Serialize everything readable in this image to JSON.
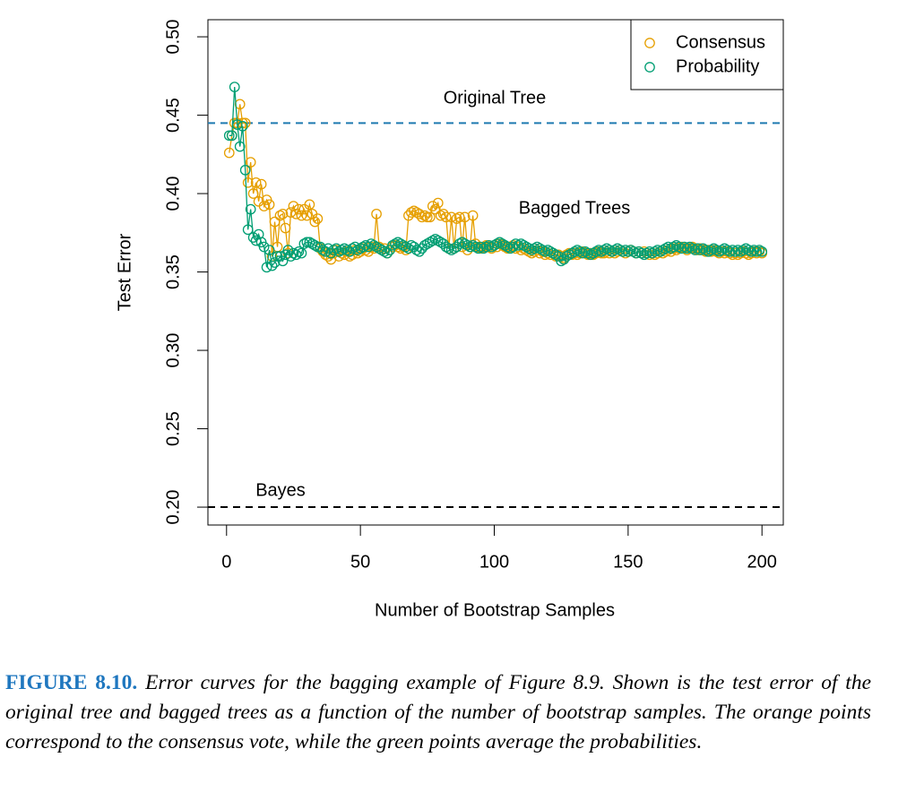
{
  "chart_data": {
    "type": "line",
    "xlabel": "Number of Bootstrap Samples",
    "ylabel": "Test Error",
    "xlim": [
      -6.96,
      207.96
    ],
    "ylim": [
      0.1886,
      0.5109
    ],
    "xticks": [
      0,
      50,
      100,
      150,
      200
    ],
    "yticks": [
      {
        "value": 0.2,
        "label": "0.20"
      },
      0.25,
      {
        "value": 0.3,
        "label": "0.30"
      },
      0.35,
      {
        "value": 0.4,
        "label": "0.40"
      },
      0.45,
      {
        "value": 0.5,
        "label": "0.50"
      }
    ],
    "legend": "top-right",
    "markers": "open-circle",
    "reference_lines": [
      {
        "label": "Original Tree",
        "value": 0.445,
        "color": "#1f7ab0"
      },
      {
        "label": "Bayes",
        "value": 0.2,
        "color": "#000000"
      }
    ],
    "annotations": [
      "Bagged Trees"
    ],
    "x": [
      1,
      2,
      3,
      4,
      5,
      6,
      7,
      8,
      9,
      10,
      11,
      12,
      13,
      14,
      15,
      16,
      17,
      18,
      19,
      20,
      21,
      22,
      23,
      24,
      25,
      26,
      27,
      28,
      29,
      30,
      31,
      32,
      33,
      34,
      35,
      36,
      37,
      38,
      39,
      40,
      41,
      42,
      43,
      44,
      45,
      46,
      47,
      48,
      49,
      50,
      51,
      52,
      53,
      54,
      55,
      56,
      57,
      58,
      59,
      60,
      61,
      62,
      63,
      64,
      65,
      66,
      67,
      68,
      69,
      70,
      71,
      72,
      73,
      74,
      75,
      76,
      77,
      78,
      79,
      80,
      81,
      82,
      83,
      84,
      85,
      86,
      87,
      88,
      89,
      90,
      91,
      92,
      93,
      94,
      95,
      96,
      97,
      98,
      99,
      100,
      101,
      102,
      103,
      104,
      105,
      106,
      107,
      108,
      109,
      110,
      111,
      112,
      113,
      114,
      115,
      116,
      117,
      118,
      119,
      120,
      121,
      122,
      123,
      124,
      125,
      126,
      127,
      128,
      129,
      130,
      131,
      132,
      133,
      134,
      135,
      136,
      137,
      138,
      139,
      140,
      141,
      142,
      143,
      144,
      145,
      146,
      147,
      148,
      149,
      150,
      151,
      152,
      153,
      154,
      155,
      156,
      157,
      158,
      159,
      160,
      161,
      162,
      163,
      164,
      165,
      166,
      167,
      168,
      169,
      170,
      171,
      172,
      173,
      174,
      175,
      176,
      177,
      178,
      179,
      180,
      181,
      182,
      183,
      184,
      185,
      186,
      187,
      188,
      189,
      190,
      191,
      192,
      193,
      194,
      195,
      196,
      197,
      198,
      199,
      200
    ],
    "series": [
      {
        "name": "Consensus",
        "color": "#E69F00",
        "values": [
          0.426,
          0.437,
          0.445,
          0.445,
          0.457,
          0.445,
          0.445,
          0.407,
          0.42,
          0.4,
          0.407,
          0.395,
          0.406,
          0.392,
          0.396,
          0.393,
          0.36,
          0.382,
          0.366,
          0.386,
          0.387,
          0.378,
          0.362,
          0.388,
          0.392,
          0.387,
          0.39,
          0.386,
          0.39,
          0.386,
          0.393,
          0.387,
          0.382,
          0.384,
          0.365,
          0.363,
          0.361,
          0.36,
          0.358,
          0.362,
          0.364,
          0.36,
          0.362,
          0.361,
          0.363,
          0.36,
          0.361,
          0.364,
          0.362,
          0.363,
          0.365,
          0.364,
          0.363,
          0.366,
          0.365,
          0.387,
          0.366,
          0.364,
          0.365,
          0.362,
          0.364,
          0.366,
          0.367,
          0.366,
          0.365,
          0.366,
          0.364,
          0.386,
          0.388,
          0.389,
          0.388,
          0.387,
          0.385,
          0.386,
          0.385,
          0.385,
          0.392,
          0.39,
          0.394,
          0.386,
          0.387,
          0.385,
          0.365,
          0.385,
          0.365,
          0.384,
          0.385,
          0.366,
          0.385,
          0.364,
          0.366,
          0.386,
          0.368,
          0.366,
          0.365,
          0.366,
          0.367,
          0.366,
          0.365,
          0.367,
          0.366,
          0.368,
          0.367,
          0.366,
          0.365,
          0.366,
          0.367,
          0.365,
          0.366,
          0.364,
          0.365,
          0.364,
          0.363,
          0.362,
          0.363,
          0.364,
          0.362,
          0.363,
          0.361,
          0.362,
          0.361,
          0.362,
          0.36,
          0.361,
          0.36,
          0.359,
          0.361,
          0.362,
          0.361,
          0.362,
          0.361,
          0.362,
          0.363,
          0.362,
          0.361,
          0.362,
          0.361,
          0.362,
          0.363,
          0.362,
          0.362,
          0.363,
          0.362,
          0.363,
          0.362,
          0.363,
          0.364,
          0.363,
          0.362,
          0.363,
          0.364,
          0.363,
          0.362,
          0.363,
          0.362,
          0.363,
          0.362,
          0.361,
          0.362,
          0.361,
          0.362,
          0.363,
          0.362,
          0.363,
          0.364,
          0.363,
          0.365,
          0.364,
          0.365,
          0.366,
          0.365,
          0.364,
          0.365,
          0.366,
          0.365,
          0.364,
          0.365,
          0.364,
          0.363,
          0.364,
          0.363,
          0.364,
          0.363,
          0.362,
          0.363,
          0.362,
          0.363,
          0.362,
          0.361,
          0.362,
          0.361,
          0.362,
          0.363,
          0.362,
          0.361,
          0.362,
          0.363,
          0.362,
          0.363,
          0.362
        ]
      },
      {
        "name": "Probability",
        "color": "#009E73",
        "values": [
          0.437,
          0.437,
          0.468,
          0.444,
          0.43,
          0.443,
          0.415,
          0.377,
          0.39,
          0.372,
          0.37,
          0.374,
          0.369,
          0.366,
          0.353,
          0.364,
          0.354,
          0.356,
          0.36,
          0.36,
          0.357,
          0.361,
          0.364,
          0.36,
          0.362,
          0.361,
          0.363,
          0.362,
          0.368,
          0.369,
          0.369,
          0.368,
          0.367,
          0.366,
          0.366,
          0.364,
          0.363,
          0.365,
          0.362,
          0.364,
          0.365,
          0.363,
          0.364,
          0.365,
          0.364,
          0.363,
          0.365,
          0.366,
          0.364,
          0.365,
          0.366,
          0.367,
          0.366,
          0.368,
          0.367,
          0.366,
          0.365,
          0.364,
          0.363,
          0.362,
          0.364,
          0.367,
          0.368,
          0.369,
          0.368,
          0.367,
          0.366,
          0.365,
          0.367,
          0.366,
          0.364,
          0.363,
          0.365,
          0.367,
          0.368,
          0.369,
          0.37,
          0.371,
          0.37,
          0.369,
          0.368,
          0.366,
          0.365,
          0.364,
          0.365,
          0.366,
          0.368,
          0.369,
          0.368,
          0.367,
          0.366,
          0.367,
          0.366,
          0.365,
          0.366,
          0.365,
          0.366,
          0.367,
          0.366,
          0.367,
          0.368,
          0.369,
          0.368,
          0.367,
          0.366,
          0.365,
          0.366,
          0.368,
          0.367,
          0.368,
          0.367,
          0.366,
          0.365,
          0.364,
          0.365,
          0.366,
          0.365,
          0.364,
          0.363,
          0.364,
          0.363,
          0.362,
          0.361,
          0.36,
          0.357,
          0.358,
          0.36,
          0.361,
          0.362,
          0.363,
          0.364,
          0.363,
          0.362,
          0.363,
          0.362,
          0.361,
          0.362,
          0.363,
          0.364,
          0.363,
          0.364,
          0.365,
          0.364,
          0.363,
          0.364,
          0.365,
          0.364,
          0.363,
          0.364,
          0.363,
          0.364,
          0.363,
          0.362,
          0.363,
          0.362,
          0.361,
          0.362,
          0.363,
          0.362,
          0.363,
          0.364,
          0.363,
          0.364,
          0.365,
          0.366,
          0.365,
          0.366,
          0.367,
          0.366,
          0.365,
          0.366,
          0.365,
          0.366,
          0.365,
          0.364,
          0.365,
          0.364,
          0.365,
          0.364,
          0.363,
          0.364,
          0.365,
          0.364,
          0.363,
          0.364,
          0.365,
          0.364,
          0.363,
          0.364,
          0.363,
          0.364,
          0.363,
          0.364,
          0.365,
          0.364,
          0.363,
          0.364,
          0.363,
          0.364,
          0.363
        ]
      }
    ]
  },
  "caption": {
    "label": "FIGURE 8.10.",
    "text": "Error curves for the bagging example of Figure 8.9. Shown is the test error of the original tree and bagged trees as a function of the number of bootstrap samples. The orange points correspond to the consensus vote, while the green points average the probabilities."
  }
}
